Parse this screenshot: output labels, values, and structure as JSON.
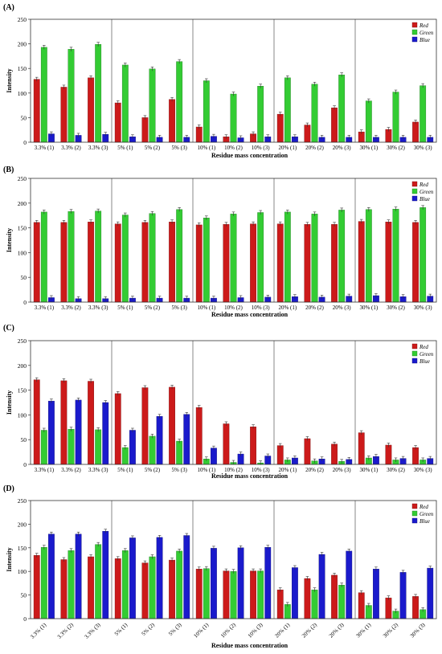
{
  "chart_data": [
    {
      "type": "bar",
      "panel_label": "(A)",
      "ylabel": "Intensity",
      "xlabel": "Residue mass concentration",
      "ylim": [
        0,
        250
      ],
      "yticks": [
        0,
        50,
        100,
        150,
        200,
        250
      ],
      "categories": [
        "3.3% (1)",
        "3.3% (2)",
        "3.3% (3)",
        "5% (1)",
        "5% (2)",
        "5% (3)",
        "10% (1)",
        "10% (2)",
        "10% (3)",
        "20% (1)",
        "20% (2)",
        "20% (3)",
        "30% (1)",
        "30% (2)",
        "30% (3)"
      ],
      "legend": "top-right",
      "tick_rotation": 0,
      "series": [
        {
          "name": "Red",
          "color": "#cc1a1a",
          "values": [
            128,
            112,
            131,
            80,
            50,
            87,
            31,
            11,
            17,
            57,
            35,
            70,
            21,
            26,
            41
          ]
        },
        {
          "name": "Green",
          "color": "#33cc33",
          "values": [
            193,
            189,
            199,
            157,
            149,
            164,
            125,
            98,
            114,
            131,
            118,
            137,
            84,
            102,
            115
          ]
        },
        {
          "name": "Blue",
          "color": "#1a1acc",
          "values": [
            17,
            14,
            16,
            11,
            10,
            10,
            12,
            9,
            11,
            11,
            10,
            10,
            10,
            10,
            10
          ]
        }
      ]
    },
    {
      "type": "bar",
      "panel_label": "(B)",
      "ylabel": "Intensity",
      "xlabel": "Residue mass concentration",
      "ylim": [
        0,
        250
      ],
      "yticks": [
        0,
        50,
        100,
        150,
        200,
        250
      ],
      "categories": [
        "3.3% (1)",
        "3.3% (2)",
        "3.3% (3)",
        "5% (1)",
        "5% (2)",
        "5% (3)",
        "10% (1)",
        "10% (2)",
        "10% (3)",
        "20% (1)",
        "20% (2)",
        "20% (3)",
        "30% (1)",
        "30% (2)",
        "30% (3)"
      ],
      "legend": "top-right",
      "tick_rotation": 0,
      "series": [
        {
          "name": "Red",
          "color": "#cc1a1a",
          "values": [
            161,
            161,
            162,
            158,
            161,
            162,
            156,
            157,
            158,
            158,
            157,
            157,
            163,
            162,
            161
          ]
        },
        {
          "name": "Green",
          "color": "#33cc33",
          "values": [
            182,
            183,
            184,
            176,
            179,
            187,
            170,
            178,
            181,
            182,
            178,
            186,
            187,
            188,
            191
          ]
        },
        {
          "name": "Blue",
          "color": "#1a1acc",
          "values": [
            9,
            7,
            7,
            8,
            8,
            8,
            8,
            9,
            10,
            11,
            10,
            12,
            13,
            11,
            12
          ]
        }
      ]
    },
    {
      "type": "bar",
      "panel_label": "(C)",
      "ylabel": "Intensity",
      "xlabel": "Residue mass concentration",
      "ylim": [
        0,
        250
      ],
      "yticks": [
        0,
        50,
        100,
        150,
        200,
        250
      ],
      "categories": [
        "3.3% (1)",
        "3.3% (2)",
        "3.3% (3)",
        "5% (1)",
        "5% (2)",
        "5% (3)",
        "10% (1)",
        "10% (2)",
        "10% (3)",
        "20% (1)",
        "20% (2)",
        "20% (3)",
        "30% (1)",
        "30% (2)",
        "30% (3)"
      ],
      "legend": "top-right",
      "tick_rotation": 0,
      "series": [
        {
          "name": "Red",
          "color": "#cc1a1a",
          "values": [
            171,
            169,
            168,
            143,
            155,
            156,
            115,
            82,
            76,
            38,
            52,
            41,
            64,
            39,
            34
          ]
        },
        {
          "name": "Green",
          "color": "#33cc33",
          "values": [
            69,
            71,
            70,
            34,
            57,
            47,
            11,
            4,
            3,
            9,
            7,
            6,
            13,
            9,
            9
          ]
        },
        {
          "name": "Blue",
          "color": "#1a1acc",
          "values": [
            128,
            130,
            125,
            69,
            97,
            101,
            33,
            21,
            17,
            13,
            11,
            10,
            16,
            12,
            12
          ]
        }
      ]
    },
    {
      "type": "bar",
      "panel_label": "(D)",
      "ylabel": "Intensity",
      "xlabel": "Residue mass concentration",
      "ylim": [
        0,
        250
      ],
      "yticks": [
        0,
        50,
        100,
        150,
        200,
        250
      ],
      "categories": [
        "3.3% (1)",
        "3.3% (2)",
        "3.3% (3)",
        "5% (1)",
        "5% (2)",
        "5% (3)",
        "10% (1)",
        "10% (2)",
        "10% (3)",
        "20% (1)",
        "20% (2)",
        "20% (3)",
        "30% (1)",
        "30% (2)",
        "30% (3)"
      ],
      "legend": "top-right",
      "tick_rotation": 45,
      "series": [
        {
          "name": "Red",
          "color": "#cc1a1a",
          "values": [
            134,
            125,
            131,
            127,
            118,
            124,
            105,
            101,
            101,
            61,
            85,
            92,
            55,
            44,
            47
          ]
        },
        {
          "name": "Green",
          "color": "#33cc33",
          "values": [
            151,
            144,
            157,
            144,
            131,
            143,
            106,
            100,
            101,
            30,
            61,
            71,
            28,
            16,
            19
          ]
        },
        {
          "name": "Blue",
          "color": "#1a1acc",
          "values": [
            179,
            179,
            185,
            171,
            172,
            176,
            149,
            150,
            151,
            108,
            136,
            143,
            105,
            98,
            107
          ]
        }
      ]
    }
  ]
}
